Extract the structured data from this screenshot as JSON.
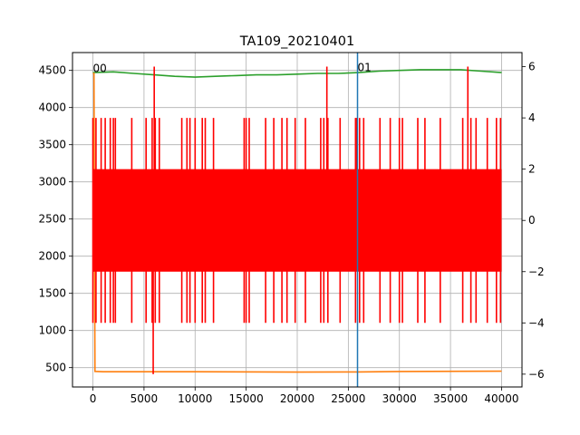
{
  "chart_data": {
    "type": "line",
    "title": "TA109_20210401",
    "xlabel": "",
    "ylabel": "",
    "xlim": [
      -2000,
      42000
    ],
    "ylim": [
      240,
      4740
    ],
    "y2lim": [
      -6.5,
      6.55
    ],
    "grid": true,
    "x_ticks": [
      0,
      5000,
      10000,
      15000,
      20000,
      25000,
      30000,
      35000,
      40000
    ],
    "x_tick_labels": [
      "0",
      "5000",
      "10000",
      "15000",
      "20000",
      "25000",
      "30000",
      "35000",
      "40000"
    ],
    "y_ticks": [
      500,
      1000,
      1500,
      2000,
      2500,
      3000,
      3500,
      4000,
      4500
    ],
    "y_tick_labels": [
      "500",
      "1000",
      "1500",
      "2000",
      "2500",
      "3000",
      "3500",
      "4000",
      "4500"
    ],
    "y2_ticks": [
      -6,
      -4,
      -2,
      0,
      2,
      4,
      6
    ],
    "y2_tick_labels": [
      "−6",
      "−4",
      "−2",
      "0",
      "2",
      "4",
      "6"
    ],
    "series": [
      {
        "color": "#2ca02c",
        "axis": "left",
        "x": [
          0,
          2000,
          4000,
          6000,
          8000,
          10000,
          12000,
          14000,
          16000,
          18000,
          20000,
          22000,
          24000,
          26000,
          28000,
          30000,
          32000,
          34000,
          36000,
          38000,
          40000
        ],
        "y": [
          4470,
          4480,
          4460,
          4440,
          4420,
          4410,
          4420,
          4430,
          4440,
          4440,
          4450,
          4460,
          4460,
          4470,
          4490,
          4500,
          4510,
          4510,
          4510,
          4490,
          4470
        ]
      },
      {
        "color": "#ff7f0e",
        "axis": "left",
        "x": [
          0,
          100,
          200,
          1000,
          10000,
          20000,
          26000,
          30000,
          40000
        ],
        "y": [
          4460,
          4460,
          450,
          445,
          445,
          440,
          442,
          448,
          452
        ]
      },
      {
        "color": "#ff0000",
        "axis": "right",
        "x_range": [
          0,
          40000
        ],
        "band_y": [
          -2,
          2
        ],
        "spike_y": [
          -4,
          4
        ],
        "spike_x": [
          0,
          300,
          800,
          1200,
          1700,
          2000,
          2200,
          3800,
          5200,
          5800,
          6100,
          6500,
          8700,
          9200,
          9500,
          10000,
          10700,
          11000,
          11800,
          14800,
          15000,
          15300,
          16900,
          17700,
          18500,
          19000,
          19800,
          20800,
          22300,
          22600,
          23000,
          24200,
          25700,
          26100,
          26500,
          28100,
          29100,
          30000,
          30300,
          31800,
          32500,
          34000,
          36200,
          37000,
          37500,
          38600,
          39500,
          39900
        ],
        "extreme_spikes": [
          {
            "x": 5900,
            "y": -6
          },
          {
            "x": 6000,
            "y": 6
          },
          {
            "x": 22900,
            "y": 6
          },
          {
            "x": 25800,
            "y": 4
          },
          {
            "x": 36700,
            "y": 6
          }
        ]
      },
      {
        "color": "#1f77b4",
        "axis": "left",
        "vertical_x": 25900
      }
    ],
    "annotations": [
      {
        "text": "00",
        "x": 0,
        "y": 4480
      },
      {
        "text": "01",
        "x": 25900,
        "y": 4490
      }
    ]
  }
}
